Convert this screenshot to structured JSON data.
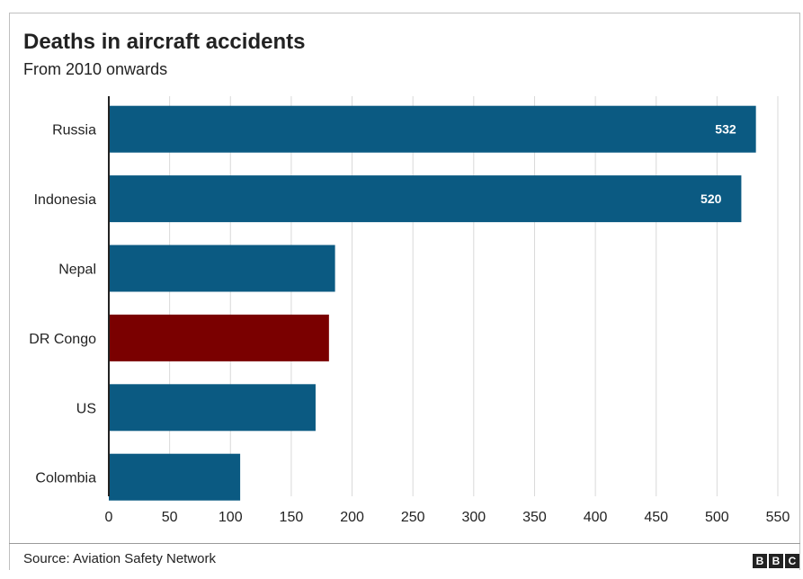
{
  "header": {
    "title": "Deaths in aircraft accidents",
    "subtitle": "From 2010 onwards"
  },
  "footer": {
    "source": "Source: Aviation Safety Network",
    "logo_letters": [
      "B",
      "B",
      "C"
    ]
  },
  "colors": {
    "bar_default": "#0b5a82",
    "bar_highlight": "#7a0000",
    "grid": "#d9d9d9",
    "axis": "#222222"
  },
  "chart_data": {
    "type": "bar",
    "orientation": "horizontal",
    "title": "Deaths in aircraft accidents",
    "subtitle": "From 2010 onwards",
    "categories": [
      "Russia",
      "Indonesia",
      "Nepal",
      "DR Congo",
      "US",
      "Colombia"
    ],
    "values": [
      532,
      520,
      186,
      181,
      170,
      108
    ],
    "data_labels": [
      "532",
      "520",
      "",
      "",
      "",
      ""
    ],
    "highlight": "DR Congo",
    "xlim": [
      0,
      550
    ],
    "xticks": [
      0,
      50,
      100,
      150,
      200,
      250,
      300,
      350,
      400,
      450,
      500,
      550
    ],
    "grid": true,
    "xlabel": "",
    "ylabel": ""
  }
}
